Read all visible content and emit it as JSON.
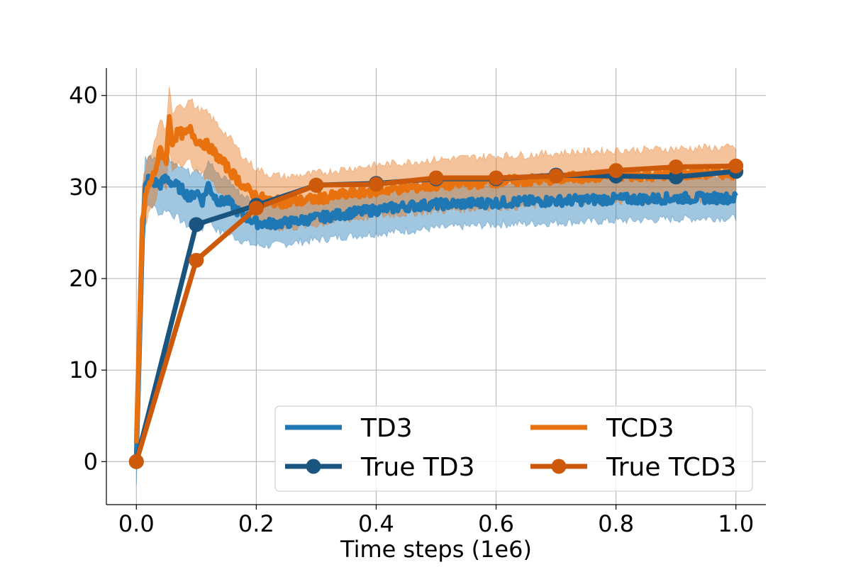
{
  "chart_data": {
    "type": "line",
    "title": "",
    "xlabel": "Time steps (1e6)",
    "ylabel": "",
    "xlim": [
      -0.05,
      1.05
    ],
    "ylim": [
      -4.7,
      43
    ],
    "grid": true,
    "legend_position": "lower-right",
    "legend_columns": 2,
    "xticks": [
      0.0,
      0.2,
      0.4,
      0.6,
      0.8,
      1.0
    ],
    "xtick_labels": [
      "0.0",
      "0.2",
      "0.4",
      "0.6",
      "0.8",
      "1.0"
    ],
    "yticks": [
      0,
      10,
      20,
      30,
      40
    ],
    "ytick_labels": [
      "0",
      "10",
      "20",
      "30",
      "40"
    ],
    "colors": {
      "td3": "#1f77b4",
      "tcd3": "#e87110",
      "true_td3": "#1a5580",
      "true_tcd3": "#cc5a0a",
      "grid": "#b0b0b0"
    },
    "series": [
      {
        "name": "TD3",
        "kind": "line_band",
        "x": [
          0.0,
          0.005,
          0.01,
          0.015,
          0.02,
          0.03,
          0.04,
          0.05,
          0.06,
          0.07,
          0.08,
          0.09,
          0.1,
          0.11,
          0.12,
          0.13,
          0.14,
          0.15,
          0.17,
          0.19,
          0.2,
          0.22,
          0.25,
          0.3,
          0.35,
          0.4,
          0.45,
          0.5,
          0.55,
          0.6,
          0.65,
          0.7,
          0.75,
          0.8,
          0.85,
          0.9,
          0.95,
          1.0
        ],
        "y": [
          0.5,
          12,
          24,
          30,
          30.8,
          30.5,
          30.3,
          31.0,
          30.4,
          30.0,
          29.5,
          28.8,
          29.6,
          28.5,
          30.2,
          29.0,
          28.3,
          28.6,
          27.3,
          26.5,
          26.1,
          26.0,
          26.1,
          26.6,
          27.1,
          27.5,
          27.9,
          28.1,
          28.2,
          28.3,
          28.4,
          28.5,
          28.6,
          28.7,
          28.7,
          28.8,
          28.8,
          28.8
        ],
        "lower": [
          -2.5,
          8,
          20,
          27,
          28.0,
          27.8,
          27.0,
          27.6,
          27.0,
          26.6,
          26.0,
          25.6,
          26.2,
          25.4,
          26.6,
          25.6,
          25.0,
          25.0,
          24.3,
          23.8,
          23.6,
          23.6,
          23.8,
          24.2,
          24.6,
          24.9,
          25.2,
          25.5,
          25.7,
          25.9,
          26.0,
          26.1,
          26.2,
          26.3,
          26.4,
          26.5,
          26.6,
          26.6
        ],
        "upper": [
          2.5,
          16,
          28,
          33,
          33.5,
          33.2,
          33.0,
          33.5,
          33.0,
          32.6,
          32.0,
          31.5,
          32.3,
          31.3,
          33.0,
          31.9,
          30.9,
          31.1,
          29.5,
          28.6,
          28.4,
          28.3,
          28.3,
          28.8,
          29.3,
          29.7,
          30.0,
          30.3,
          30.5,
          30.6,
          30.7,
          30.8,
          30.9,
          31.0,
          31.0,
          31.1,
          31.1,
          31.1
        ]
      },
      {
        "name": "TCD3",
        "kind": "line_band",
        "x": [
          0.0,
          0.005,
          0.01,
          0.015,
          0.02,
          0.03,
          0.04,
          0.05,
          0.055,
          0.06,
          0.07,
          0.08,
          0.09,
          0.1,
          0.12,
          0.14,
          0.16,
          0.18,
          0.2,
          0.22,
          0.25,
          0.3,
          0.35,
          0.4,
          0.45,
          0.5,
          0.55,
          0.6,
          0.65,
          0.7,
          0.75,
          0.8,
          0.85,
          0.9,
          0.95,
          1.0
        ],
        "y": [
          2,
          14,
          26,
          29,
          30.0,
          31.5,
          34.0,
          33.0,
          37.5,
          35.0,
          36.0,
          35.7,
          36.2,
          35.2,
          34.5,
          33.0,
          31.5,
          30.0,
          29.0,
          28.5,
          28.3,
          28.7,
          29.2,
          29.6,
          29.9,
          30.2,
          30.4,
          30.6,
          30.7,
          30.9,
          31.1,
          31.2,
          31.3,
          31.4,
          31.5,
          31.5
        ],
        "lower": [
          0,
          10,
          22,
          26,
          27.0,
          28.3,
          30.6,
          29.8,
          34.2,
          31.8,
          32.8,
          32.5,
          32.8,
          31.8,
          31.0,
          29.5,
          28.0,
          26.8,
          26.0,
          25.6,
          25.5,
          25.9,
          26.4,
          26.8,
          27.1,
          27.4,
          27.6,
          27.8,
          27.9,
          28.1,
          28.3,
          28.4,
          28.5,
          28.6,
          28.7,
          28.7
        ],
        "upper": [
          4,
          18,
          30,
          32,
          33.0,
          34.7,
          37.4,
          36.2,
          40.7,
          38.2,
          39.2,
          38.9,
          39.6,
          38.6,
          38.0,
          36.5,
          35.0,
          33.2,
          32.0,
          31.4,
          31.1,
          31.5,
          32.0,
          32.4,
          32.7,
          33.0,
          33.2,
          33.4,
          33.5,
          33.7,
          33.9,
          34.0,
          34.1,
          34.2,
          34.3,
          34.3
        ]
      },
      {
        "name": "True TD3",
        "kind": "line_marker",
        "x": [
          0.0,
          0.1,
          0.2,
          0.3,
          0.4,
          0.5,
          0.6,
          0.7,
          0.8,
          0.9,
          1.0
        ],
        "y": [
          0.0,
          25.9,
          28.0,
          30.2,
          30.4,
          30.9,
          30.9,
          31.3,
          31.2,
          31.1,
          31.7
        ]
      },
      {
        "name": "True TCD3",
        "kind": "line_marker",
        "x": [
          0.0,
          0.1,
          0.2,
          0.3,
          0.4,
          0.5,
          0.6,
          0.7,
          0.8,
          0.9,
          1.0
        ],
        "y": [
          0.0,
          22.0,
          27.7,
          30.2,
          30.3,
          31.0,
          31.0,
          31.2,
          31.8,
          32.2,
          32.3
        ]
      }
    ],
    "legend": {
      "items": [
        {
          "label": "TD3",
          "series": "TD3"
        },
        {
          "label": "TCD3",
          "series": "TCD3"
        },
        {
          "label": "True TD3",
          "series": "True TD3"
        },
        {
          "label": "True TCD3",
          "series": "True TCD3"
        }
      ]
    }
  }
}
